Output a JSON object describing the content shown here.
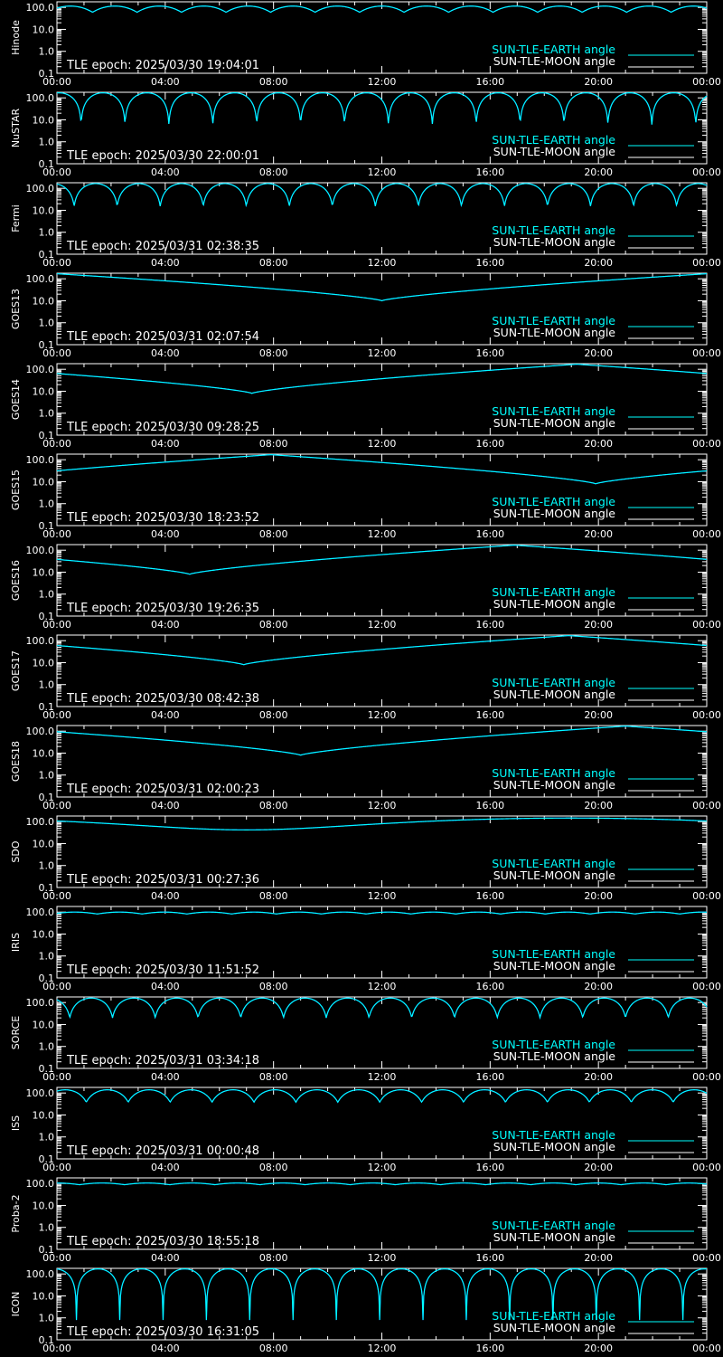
{
  "chart_data": [
    {
      "type": "line",
      "satellite": "Hinode",
      "epoch_text": "TLE epoch: 2025/03/30 19:04:01",
      "ylim": [
        0.1,
        180
      ],
      "yscale": "log",
      "y_ticks": [
        "100.0",
        "10.0",
        "1.0",
        "0.1"
      ],
      "x_ticks": [
        "00:00",
        "04:00",
        "08:00",
        "12:00",
        "16:00",
        "20:00",
        "00:00"
      ],
      "legend": [
        "SUN-TLE-EARTH angle",
        "SUN-TLE-MOON angle"
      ],
      "series": [
        {
          "name": "SUN-TLE-EARTH angle",
          "color": "#00ffff",
          "model": "orbit",
          "max": 115,
          "min": 60,
          "orbits": 14.6,
          "phase": 0.2
        },
        {
          "name": "SUN-TLE-MOON angle",
          "color": "#0000ff",
          "model": "orbit",
          "max": 115,
          "min": 60,
          "orbits": 14.6,
          "phase": 0.2
        }
      ]
    },
    {
      "type": "line",
      "satellite": "NuSTAR",
      "epoch_text": "TLE epoch: 2025/03/30 22:00:01",
      "ylim": [
        0.1,
        180
      ],
      "yscale": "log",
      "y_ticks": [
        "100.0",
        "10.0",
        "1.0",
        "0.1"
      ],
      "x_ticks": [
        "00:00",
        "04:00",
        "08:00",
        "12:00",
        "16:00",
        "20:00",
        "00:00"
      ],
      "legend": [
        "SUN-TLE-EARTH angle",
        "SUN-TLE-MOON angle"
      ],
      "series": [
        {
          "name": "SUN-TLE-EARTH angle",
          "color": "#00ffff",
          "model": "orbit",
          "max": 170,
          "min": 6,
          "orbits": 14.8,
          "phase": 0.45
        },
        {
          "name": "SUN-TLE-MOON angle",
          "color": "#0000ff",
          "model": "orbit",
          "max": 170,
          "min": 6,
          "orbits": 14.8,
          "phase": 0.45
        }
      ]
    },
    {
      "type": "line",
      "satellite": "Fermi",
      "epoch_text": "TLE epoch: 2025/03/31 02:38:35",
      "ylim": [
        0.1,
        180
      ],
      "yscale": "log",
      "y_ticks": [
        "100.0",
        "10.0",
        "1.0",
        "0.1"
      ],
      "x_ticks": [
        "00:00",
        "04:00",
        "08:00",
        "12:00",
        "16:00",
        "20:00",
        "00:00"
      ],
      "legend": [
        "SUN-TLE-EARTH angle",
        "SUN-TLE-MOON angle"
      ],
      "series": [
        {
          "name": "SUN-TLE-EARTH angle",
          "color": "#00ffff",
          "model": "orbit",
          "max": 165,
          "min": 15,
          "orbits": 15.1,
          "phase": 0.6
        },
        {
          "name": "SUN-TLE-MOON angle",
          "color": "#0000ff",
          "model": "orbit",
          "max": 165,
          "min": 15,
          "orbits": 15.1,
          "phase": 0.6
        }
      ]
    },
    {
      "type": "line",
      "satellite": "GOES13",
      "epoch_text": "TLE epoch: 2025/03/31 02:07:54",
      "ylim": [
        0.1,
        180
      ],
      "yscale": "log",
      "y_ticks": [
        "100.0",
        "10.0",
        "1.0",
        "0.1"
      ],
      "x_ticks": [
        "00:00",
        "04:00",
        "08:00",
        "12:00",
        "16:00",
        "20:00",
        "00:00"
      ],
      "legend": [
        "SUN-TLE-EARTH angle",
        "SUN-TLE-MOON angle"
      ],
      "series": [
        {
          "name": "SUN-TLE-EARTH angle",
          "color": "#00ffff",
          "model": "geo",
          "max": 170,
          "min": 10,
          "min_hour": 12.0
        },
        {
          "name": "SUN-TLE-MOON angle",
          "color": "#0000ff",
          "model": "geo",
          "max": 170,
          "min": 10,
          "min_hour": 12.0
        }
      ]
    },
    {
      "type": "line",
      "satellite": "GOES14",
      "epoch_text": "TLE epoch: 2025/03/30 09:28:25",
      "ylim": [
        0.1,
        180
      ],
      "yscale": "log",
      "y_ticks": [
        "100.0",
        "10.0",
        "1.0",
        "0.1"
      ],
      "x_ticks": [
        "00:00",
        "04:00",
        "08:00",
        "12:00",
        "16:00",
        "20:00",
        "00:00"
      ],
      "legend": [
        "SUN-TLE-EARTH angle",
        "SUN-TLE-MOON angle"
      ],
      "series": [
        {
          "name": "SUN-TLE-EARTH angle",
          "color": "#00ffff",
          "model": "geo",
          "max": 170,
          "min": 8,
          "min_hour": 7.2
        },
        {
          "name": "SUN-TLE-MOON angle",
          "color": "#0000ff",
          "model": "geo",
          "max": 170,
          "min": 8,
          "min_hour": 7.2
        }
      ]
    },
    {
      "type": "line",
      "satellite": "GOES15",
      "epoch_text": "TLE epoch: 2025/03/30 18:23:52",
      "ylim": [
        0.1,
        180
      ],
      "yscale": "log",
      "y_ticks": [
        "100.0",
        "10.0",
        "1.0",
        "0.1"
      ],
      "x_ticks": [
        "00:00",
        "04:00",
        "08:00",
        "12:00",
        "16:00",
        "20:00",
        "00:00"
      ],
      "legend": [
        "SUN-TLE-EARTH angle",
        "SUN-TLE-MOON angle"
      ],
      "series": [
        {
          "name": "SUN-TLE-EARTH angle",
          "color": "#00ffff",
          "model": "geo",
          "max": 170,
          "min": 8,
          "min_hour": 19.9
        },
        {
          "name": "SUN-TLE-MOON angle",
          "color": "#0000ff",
          "model": "geo",
          "max": 170,
          "min": 8,
          "min_hour": 19.9
        }
      ]
    },
    {
      "type": "line",
      "satellite": "GOES16",
      "epoch_text": "TLE epoch: 2025/03/30 19:26:35",
      "ylim": [
        0.1,
        180
      ],
      "yscale": "log",
      "y_ticks": [
        "100.0",
        "10.0",
        "1.0",
        "0.1"
      ],
      "x_ticks": [
        "00:00",
        "04:00",
        "08:00",
        "12:00",
        "16:00",
        "20:00",
        "00:00"
      ],
      "legend": [
        "SUN-TLE-EARTH angle",
        "SUN-TLE-MOON angle"
      ],
      "series": [
        {
          "name": "SUN-TLE-EARTH angle",
          "color": "#00ffff",
          "model": "geo",
          "max": 170,
          "min": 8,
          "min_hour": 4.9
        },
        {
          "name": "SUN-TLE-MOON angle",
          "color": "#0000ff",
          "model": "geo",
          "max": 170,
          "min": 8,
          "min_hour": 4.9
        }
      ]
    },
    {
      "type": "line",
      "satellite": "GOES17",
      "epoch_text": "TLE epoch: 2025/03/30 08:42:38",
      "ylim": [
        0.1,
        180
      ],
      "yscale": "log",
      "y_ticks": [
        "100.0",
        "10.0",
        "1.0",
        "0.1"
      ],
      "x_ticks": [
        "00:00",
        "04:00",
        "08:00",
        "12:00",
        "16:00",
        "20:00",
        "00:00"
      ],
      "legend": [
        "SUN-TLE-EARTH angle",
        "SUN-TLE-MOON angle"
      ],
      "series": [
        {
          "name": "SUN-TLE-EARTH angle",
          "color": "#00ffff",
          "model": "geo",
          "max": 170,
          "min": 8,
          "min_hour": 6.9
        },
        {
          "name": "SUN-TLE-MOON angle",
          "color": "#0000ff",
          "model": "geo",
          "max": 170,
          "min": 8,
          "min_hour": 6.9
        }
      ]
    },
    {
      "type": "line",
      "satellite": "GOES18",
      "epoch_text": "TLE epoch: 2025/03/31 02:00:23",
      "ylim": [
        0.1,
        180
      ],
      "yscale": "log",
      "y_ticks": [
        "100.0",
        "10.0",
        "1.0",
        "0.1"
      ],
      "x_ticks": [
        "00:00",
        "04:00",
        "08:00",
        "12:00",
        "16:00",
        "20:00",
        "00:00"
      ],
      "legend": [
        "SUN-TLE-EARTH angle",
        "SUN-TLE-MOON angle"
      ],
      "series": [
        {
          "name": "SUN-TLE-EARTH angle",
          "color": "#00ffff",
          "model": "geo",
          "max": 170,
          "min": 8,
          "min_hour": 9.0
        },
        {
          "name": "SUN-TLE-MOON angle",
          "color": "#0000ff",
          "model": "geo",
          "max": 170,
          "min": 8,
          "min_hour": 9.0
        }
      ]
    },
    {
      "type": "line",
      "satellite": "SDO",
      "epoch_text": "TLE epoch: 2025/03/31 00:27:36",
      "ylim": [
        0.1,
        180
      ],
      "yscale": "log",
      "y_ticks": [
        "100.0",
        "10.0",
        "1.0",
        "0.1"
      ],
      "x_ticks": [
        "00:00",
        "04:00",
        "08:00",
        "12:00",
        "16:00",
        "20:00",
        "00:00"
      ],
      "legend": [
        "SUN-TLE-EARTH angle",
        "SUN-TLE-MOON angle"
      ],
      "series": [
        {
          "name": "SUN-TLE-EARTH angle",
          "color": "#00ffff",
          "model": "smooth",
          "max": 145,
          "min": 42,
          "min_hour": 7.0
        },
        {
          "name": "SUN-TLE-MOON angle",
          "color": "#0000ff",
          "model": "smooth",
          "max": 145,
          "min": 42,
          "min_hour": 7.0
        }
      ]
    },
    {
      "type": "line",
      "satellite": "IRIS",
      "epoch_text": "TLE epoch: 2025/03/30 11:51:52",
      "ylim": [
        0.1,
        180
      ],
      "yscale": "log",
      "y_ticks": [
        "100.0",
        "10.0",
        "1.0",
        "0.1"
      ],
      "x_ticks": [
        "00:00",
        "04:00",
        "08:00",
        "12:00",
        "16:00",
        "20:00",
        "00:00"
      ],
      "legend": [
        "SUN-TLE-EARTH angle",
        "SUN-TLE-MOON angle"
      ],
      "series": [
        {
          "name": "SUN-TLE-EARTH angle",
          "color": "#00ffff",
          "model": "orbit",
          "max": 100,
          "min": 82,
          "orbits": 14.5,
          "phase": 0.1
        },
        {
          "name": "SUN-TLE-MOON angle",
          "color": "#0000ff",
          "model": "orbit",
          "max": 100,
          "min": 82,
          "orbits": 14.5,
          "phase": 0.1
        }
      ]
    },
    {
      "type": "line",
      "satellite": "SORCE",
      "epoch_text": "TLE epoch: 2025/03/31 03:34:18",
      "ylim": [
        0.1,
        180
      ],
      "yscale": "log",
      "y_ticks": [
        "100.0",
        "10.0",
        "1.0",
        "0.1"
      ],
      "x_ticks": [
        "00:00",
        "04:00",
        "08:00",
        "12:00",
        "16:00",
        "20:00",
        "00:00"
      ],
      "legend": [
        "SUN-TLE-EARTH angle",
        "SUN-TLE-MOON angle"
      ],
      "series": [
        {
          "name": "SUN-TLE-EARTH angle",
          "color": "#00ffff",
          "model": "orbit",
          "max": 160,
          "min": 20,
          "orbits": 15.2,
          "phase": 0.7
        },
        {
          "name": "SUN-TLE-MOON angle",
          "color": "#0000ff",
          "model": "orbit",
          "max": 160,
          "min": 20,
          "orbits": 15.2,
          "phase": 0.7
        }
      ]
    },
    {
      "type": "line",
      "satellite": "ISS",
      "epoch_text": "TLE epoch: 2025/03/31 00:00:48",
      "ylim": [
        0.1,
        180
      ],
      "yscale": "log",
      "y_ticks": [
        "100.0",
        "10.0",
        "1.0",
        "0.1"
      ],
      "x_ticks": [
        "00:00",
        "04:00",
        "08:00",
        "12:00",
        "16:00",
        "20:00",
        "00:00"
      ],
      "legend": [
        "SUN-TLE-EARTH angle",
        "SUN-TLE-MOON angle"
      ],
      "series": [
        {
          "name": "SUN-TLE-EARTH angle",
          "color": "#00ffff",
          "model": "orbit",
          "max": 140,
          "min": 38,
          "orbits": 15.5,
          "phase": 0.3
        },
        {
          "name": "SUN-TLE-MOON angle",
          "color": "#0000ff",
          "model": "orbit",
          "max": 140,
          "min": 38,
          "orbits": 15.5,
          "phase": 0.3
        }
      ]
    },
    {
      "type": "line",
      "satellite": "Proba-2",
      "epoch_text": "TLE epoch: 2025/03/30 18:55:18",
      "ylim": [
        0.1,
        180
      ],
      "yscale": "log",
      "y_ticks": [
        "100.0",
        "10.0",
        "1.0",
        "0.1"
      ],
      "x_ticks": [
        "00:00",
        "04:00",
        "08:00",
        "12:00",
        "16:00",
        "20:00",
        "00:00"
      ],
      "legend": [
        "SUN-TLE-EARTH angle",
        "SUN-TLE-MOON angle"
      ],
      "series": [
        {
          "name": "SUN-TLE-EARTH angle",
          "color": "#00ffff",
          "model": "orbit",
          "max": 105,
          "min": 88,
          "orbits": 14.4,
          "phase": 0.5
        },
        {
          "name": "SUN-TLE-MOON angle",
          "color": "#0000ff",
          "model": "orbit",
          "max": 105,
          "min": 88,
          "orbits": 14.4,
          "phase": 0.5
        }
      ]
    },
    {
      "type": "line",
      "satellite": "ICON",
      "epoch_text": "TLE epoch: 2025/03/30 16:31:05",
      "ylim": [
        0.1,
        180
      ],
      "yscale": "log",
      "y_ticks": [
        "100.0",
        "10.0",
        "1.0",
        "0.1"
      ],
      "x_ticks": [
        "00:00",
        "04:00",
        "08:00",
        "12:00",
        "16:00",
        "20:00",
        "00:00"
      ],
      "legend": [
        "SUN-TLE-EARTH angle",
        "SUN-TLE-MOON angle"
      ],
      "series": [
        {
          "name": "SUN-TLE-EARTH angle",
          "color": "#00ffff",
          "model": "orbit",
          "max": 170,
          "min": 0.8,
          "orbits": 15.0,
          "phase": 0.55
        },
        {
          "name": "SUN-TLE-MOON angle",
          "color": "#0000ff",
          "model": "orbit",
          "max": 170,
          "min": 0.8,
          "orbits": 15.0,
          "phase": 0.55
        }
      ]
    }
  ]
}
